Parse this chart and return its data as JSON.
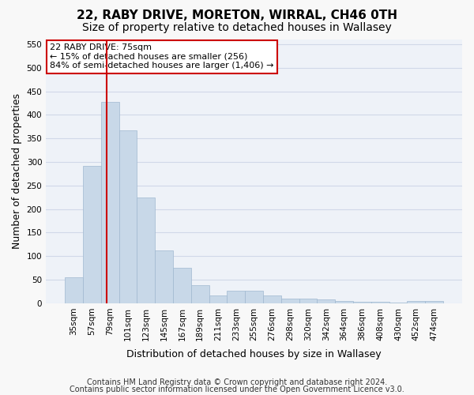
{
  "title": "22, RABY DRIVE, MORETON, WIRRAL, CH46 0TH",
  "subtitle": "Size of property relative to detached houses in Wallasey",
  "xlabel": "Distribution of detached houses by size in Wallasey",
  "ylabel": "Number of detached properties",
  "categories": [
    "35sqm",
    "57sqm",
    "79sqm",
    "101sqm",
    "123sqm",
    "145sqm",
    "167sqm",
    "189sqm",
    "211sqm",
    "233sqm",
    "255sqm",
    "276sqm",
    "298sqm",
    "320sqm",
    "342sqm",
    "364sqm",
    "386sqm",
    "408sqm",
    "430sqm",
    "452sqm",
    "474sqm"
  ],
  "values": [
    55,
    291,
    428,
    367,
    224,
    113,
    75,
    38,
    17,
    27,
    27,
    16,
    10,
    10,
    8,
    5,
    4,
    3,
    2,
    5,
    5
  ],
  "bar_color": "#c8d8e8",
  "bar_edge_color": "#a0b8d0",
  "grid_color": "#d0d8e8",
  "background_color": "#eef2f8",
  "annotation_line1": "22 RABY DRIVE: 75sqm",
  "annotation_line2": "← 15% of detached houses are smaller (256)",
  "annotation_line3": "84% of semi-detached houses are larger (1,406) →",
  "annotation_box_color": "#ffffff",
  "annotation_box_edge_color": "#cc0000",
  "vline_color": "#cc0000",
  "ylim": [
    0,
    560
  ],
  "yticks": [
    0,
    50,
    100,
    150,
    200,
    250,
    300,
    350,
    400,
    450,
    500,
    550
  ],
  "footer_line1": "Contains HM Land Registry data © Crown copyright and database right 2024.",
  "footer_line2": "Contains public sector information licensed under the Open Government Licence v3.0.",
  "title_fontsize": 11,
  "subtitle_fontsize": 10,
  "xlabel_fontsize": 9,
  "ylabel_fontsize": 9,
  "tick_fontsize": 7.5,
  "annotation_fontsize": 8,
  "footer_fontsize": 7
}
